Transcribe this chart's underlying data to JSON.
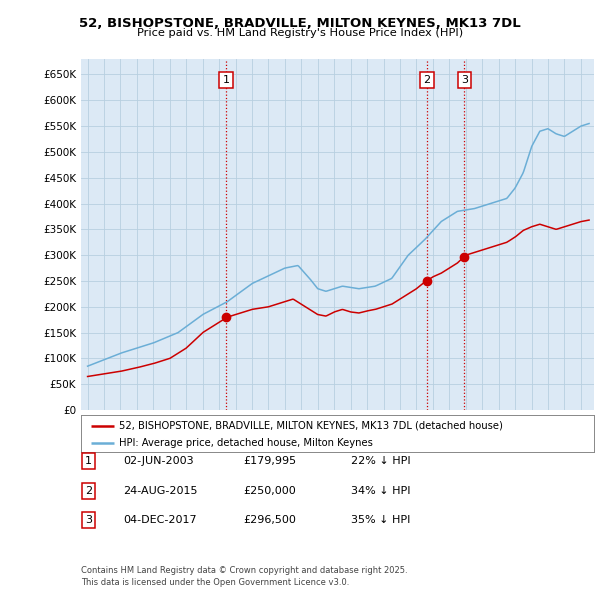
{
  "title": "52, BISHOPSTONE, BRADVILLE, MILTON KEYNES, MK13 7DL",
  "subtitle": "Price paid vs. HM Land Registry's House Price Index (HPI)",
  "plot_bg_color": "#dce9f5",
  "legend_entries": [
    "52, BISHOPSTONE, BRADVILLE, MILTON KEYNES, MK13 7DL (detached house)",
    "HPI: Average price, detached house, Milton Keynes"
  ],
  "transactions": [
    {
      "date": "2003-06-02",
      "year": 2003.42,
      "price": 179995,
      "label": "1"
    },
    {
      "date": "2015-08-24",
      "year": 2015.64,
      "price": 250000,
      "label": "2"
    },
    {
      "date": "2017-12-04",
      "year": 2017.92,
      "price": 296500,
      "label": "3"
    }
  ],
  "table_rows": [
    {
      "num": "1",
      "date": "02-JUN-2003",
      "price": "£179,995",
      "pct": "22% ↓ HPI"
    },
    {
      "num": "2",
      "date": "24-AUG-2015",
      "price": "£250,000",
      "pct": "34% ↓ HPI"
    },
    {
      "num": "3",
      "date": "04-DEC-2017",
      "price": "£296,500",
      "pct": "35% ↓ HPI"
    }
  ],
  "footer": "Contains HM Land Registry data © Crown copyright and database right 2025.\nThis data is licensed under the Open Government Licence v3.0.",
  "hpi_color": "#6baed6",
  "sold_color": "#cc0000",
  "ylim": [
    0,
    680000
  ],
  "ytick_step": 50000,
  "vline_color": "#cc0000",
  "grid_color": "#b8cfe0",
  "box_color": "#cc0000",
  "xmin": 1994.6,
  "xmax": 2025.8
}
